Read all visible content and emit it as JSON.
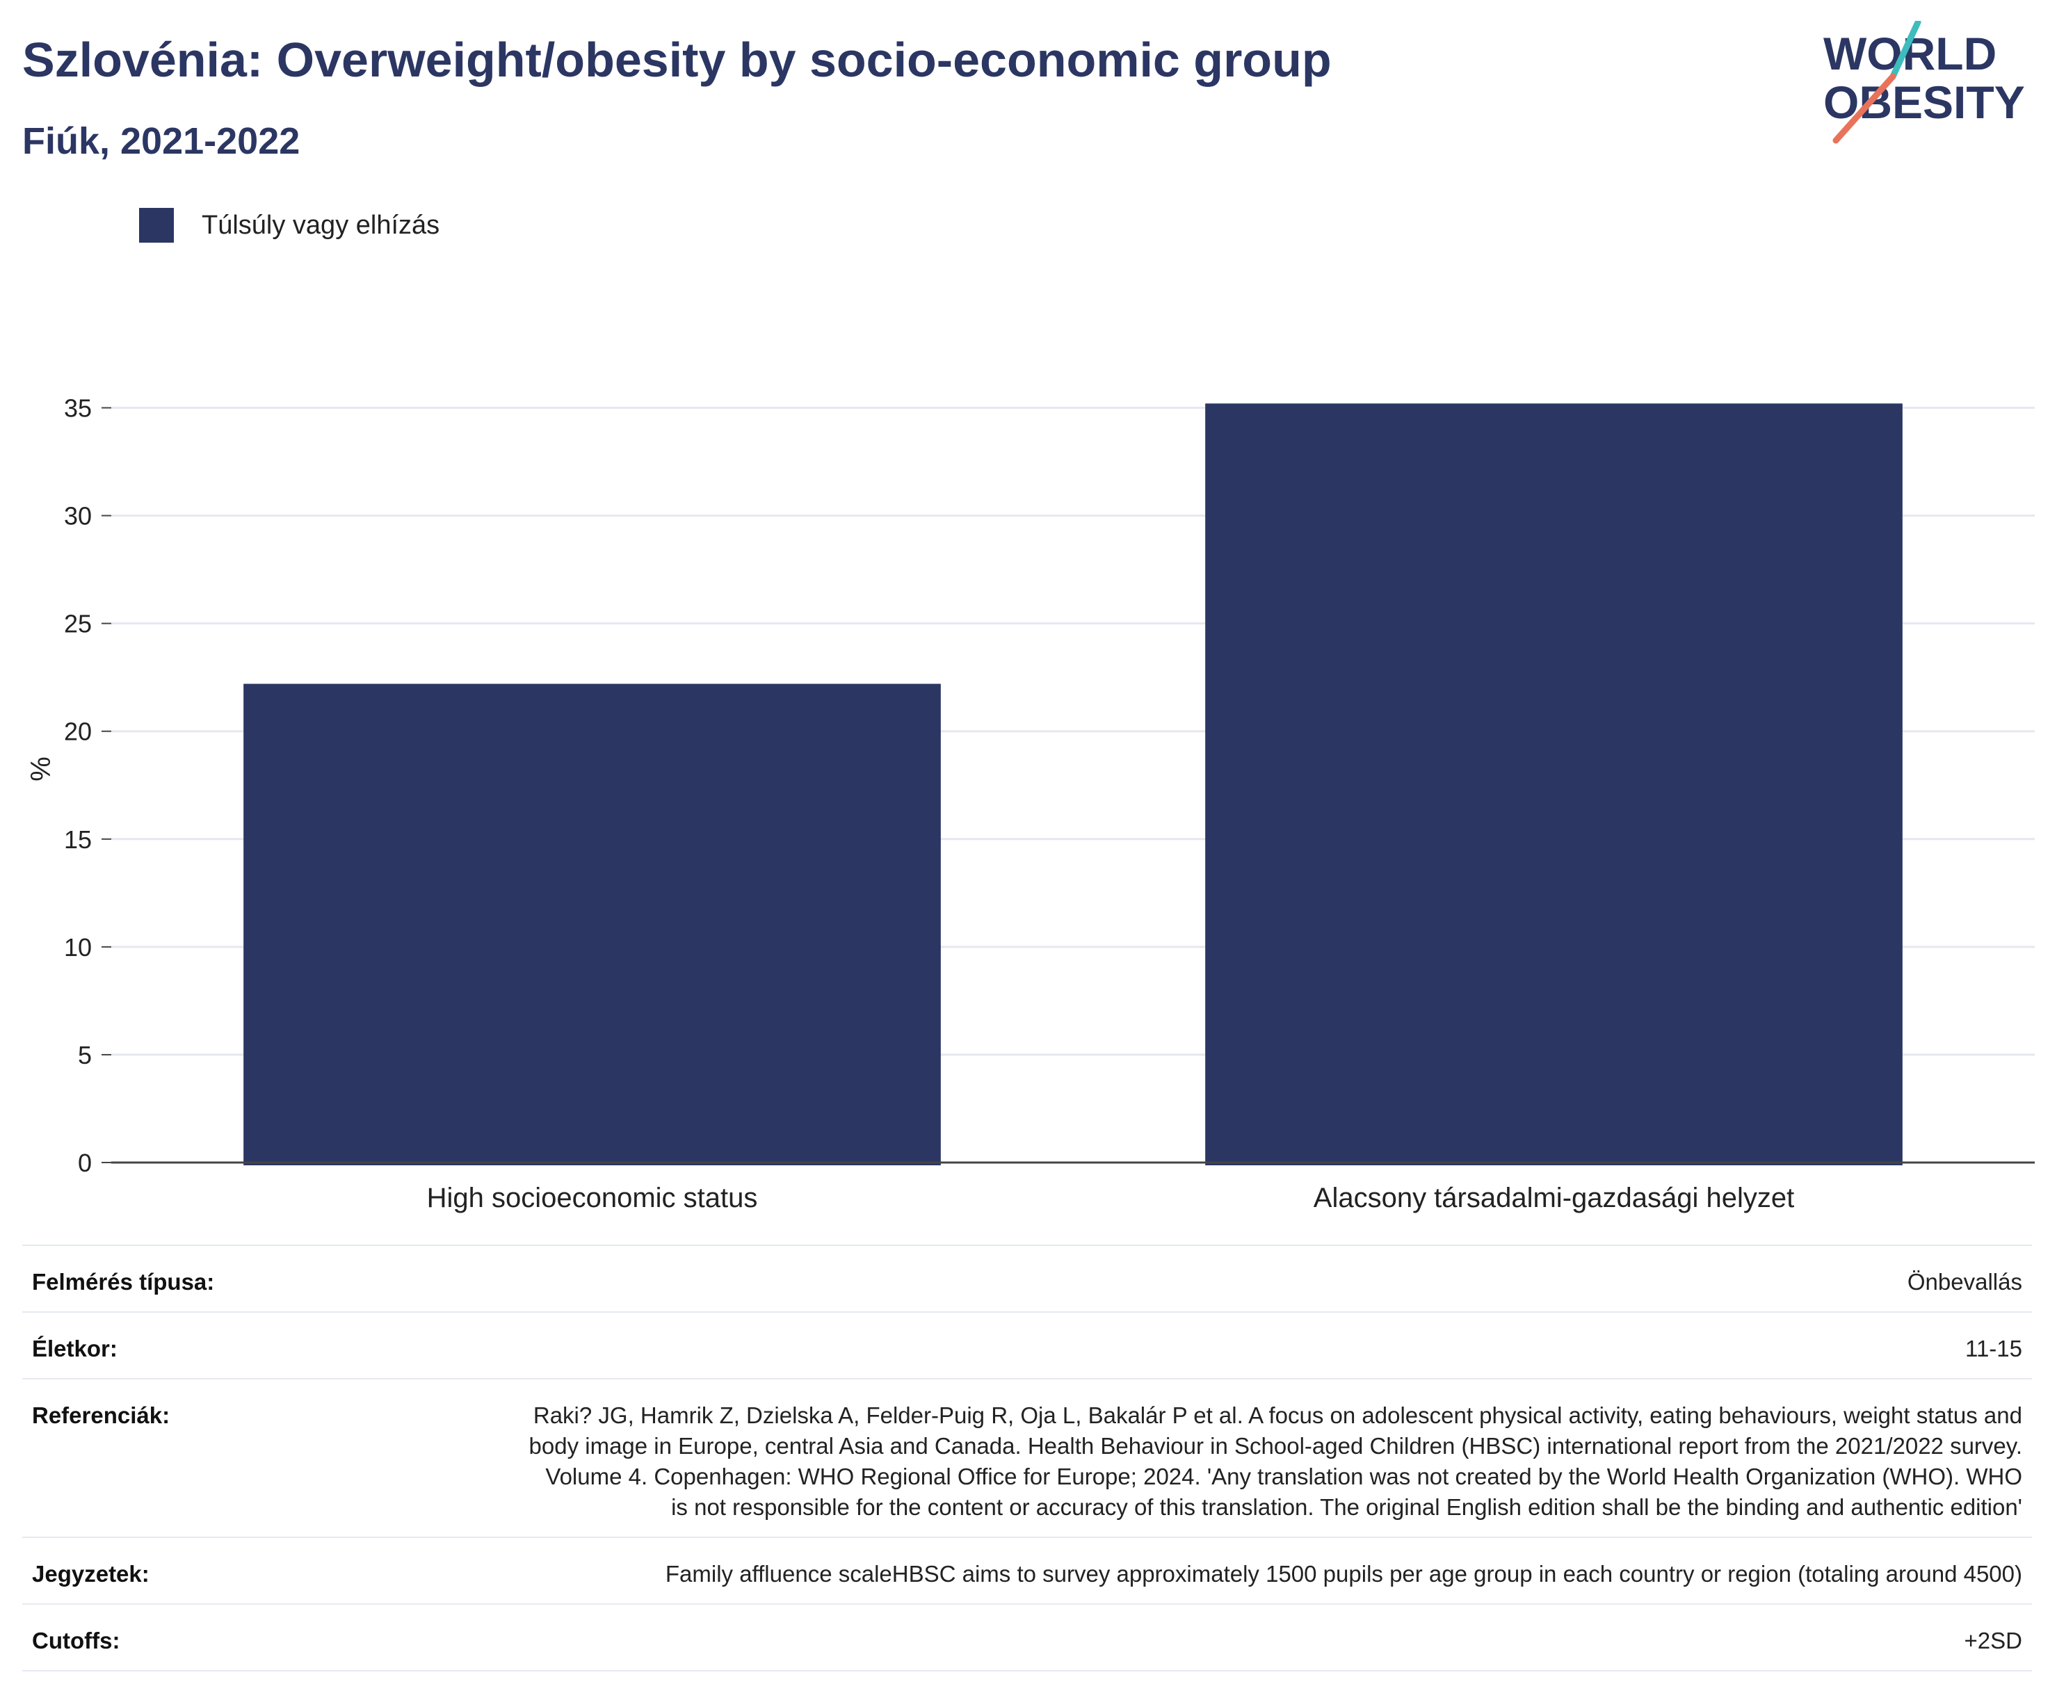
{
  "header": {
    "title": "Szlovénia: Overweight/obesity by socio-economic group",
    "subtitle": "Fiúk, 2021-2022"
  },
  "logo": {
    "line1": "WORLD",
    "line2": "OBESITY",
    "slash_colors": [
      "#3dbdbd",
      "#e8735a"
    ]
  },
  "colors": {
    "bar": "#2b3663",
    "title": "#2b3663",
    "grid": "#e6e8ef",
    "axis": "#444444"
  },
  "chart_data": {
    "type": "bar",
    "categories": [
      "High socioeconomic status",
      "Alacsony társadalmi-gazdasági helyzet"
    ],
    "series": [
      {
        "name": "Túlsúly vagy elhízás",
        "values": [
          22.2,
          35.2
        ]
      }
    ],
    "ylabel": "%",
    "xlabel": "",
    "ylim": [
      0,
      36.5
    ],
    "yticks": [
      0,
      5,
      10,
      15,
      20,
      25,
      30,
      35
    ],
    "grid": true,
    "legend_position": "top-left"
  },
  "metadata": [
    {
      "label": "Felmérés típusa:",
      "value": "Önbevallás"
    },
    {
      "label": "Életkor:",
      "value": "11-15"
    },
    {
      "label": "Referenciák:",
      "value": "Raki? JG, Hamrik Z, Dzielska A, Felder-Puig R, Oja L, Bakalár P et al. A focus on adolescent physical activity, eating behaviours, weight status and body image in Europe, central Asia and Canada. Health Behaviour in School-aged Children (HBSC) international report from the 2021/2022 survey. Volume 4. Copenhagen: WHO Regional Office for Europe; 2024. 'Any translation was not created by the World Health Organization (WHO). WHO is not responsible for the content or accuracy of this translation. The original English edition shall be the binding and authentic edition'"
    },
    {
      "label": "Jegyzetek:",
      "value": "Family affluence scaleHBSC aims to survey approximately 1500 pupils per age group in each country or region (totaling around 4500)"
    },
    {
      "label": "Cutoffs:",
      "value": "+2SD"
    }
  ]
}
